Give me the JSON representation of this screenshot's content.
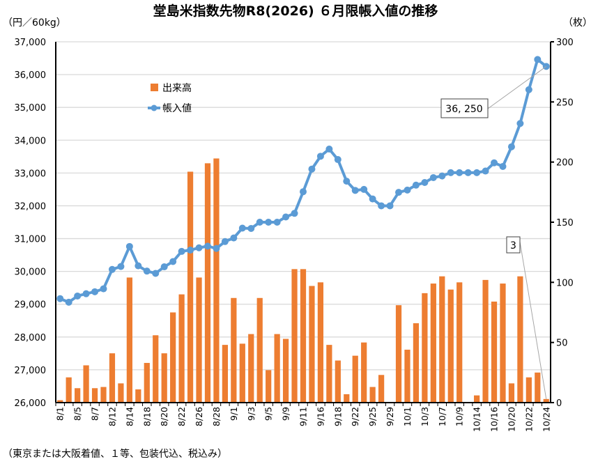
{
  "chart_data": {
    "type": "bar+line",
    "title": "堂島米指数先物R8(2026) ６月限帳入値の推移",
    "ylabel_left": "（円／60kg）",
    "ylabel_right": "（枚）",
    "footnote": "（東京または大阪着値、１等、包装代込、税込み）",
    "ylim_left": [
      26000,
      37000
    ],
    "yticks_left": [
      "26,000",
      "27,000",
      "28,000",
      "29,000",
      "30,000",
      "31,000",
      "32,000",
      "33,000",
      "34,000",
      "35,000",
      "36,000",
      "37,000"
    ],
    "ylim_right": [
      0,
      300
    ],
    "yticks_right": [
      "0",
      "50",
      "100",
      "150",
      "200",
      "250",
      "300"
    ],
    "grid": true,
    "legend": [
      "出来高",
      "帳入値"
    ],
    "legend_position": "top-left",
    "colors": {
      "volume": "#ed7d31",
      "price": "#5b9bd5"
    },
    "categories": [
      "8/1",
      "8/4",
      "8/5",
      "8/6",
      "8/7",
      "8/8",
      "8/12",
      "8/13",
      "8/14",
      "8/15",
      "8/18",
      "8/19",
      "8/20",
      "8/21",
      "8/22",
      "8/25",
      "8/26",
      "8/27",
      "8/28",
      "8/29",
      "9/1",
      "9/2",
      "9/3",
      "9/4",
      "9/5",
      "9/8",
      "9/9",
      "9/10",
      "9/11",
      "9/12",
      "9/16",
      "9/17",
      "9/18",
      "9/19",
      "9/22",
      "9/24",
      "9/25",
      "9/26",
      "9/29",
      "9/30",
      "10/1",
      "10/2",
      "10/3",
      "10/6",
      "10/7",
      "10/8",
      "10/9",
      "10/10",
      "10/14",
      "10/15",
      "10/16",
      "10/17",
      "10/20",
      "10/21",
      "10/22",
      "10/23",
      "10/24"
    ],
    "visible_xticks": [
      "8/1",
      "8/5",
      "8/7",
      "8/12",
      "8/14",
      "8/18",
      "8/20",
      "8/22",
      "8/26",
      "8/28",
      "9/1",
      "9/3",
      "9/5",
      "9/9",
      "9/11",
      "9/16",
      "9/18",
      "9/22",
      "9/25",
      "9/29",
      "10/1",
      "10/3",
      "10/7",
      "10/9",
      "10/14",
      "10/16",
      "10/20",
      "10/22",
      "10/24"
    ],
    "series": [
      {
        "name": "出来高",
        "axis": "right",
        "type": "bar",
        "values": [
          2,
          21,
          12,
          31,
          12,
          13,
          41,
          16,
          104,
          11,
          33,
          56,
          41,
          75,
          90,
          192,
          104,
          199,
          203,
          48,
          87,
          49,
          57,
          87,
          27,
          57,
          53,
          111,
          111,
          97,
          100,
          48,
          35,
          7,
          39,
          50,
          13,
          23,
          0,
          81,
          44,
          66,
          91,
          99,
          105,
          94,
          100,
          0,
          6,
          102,
          84,
          99,
          16,
          105,
          21,
          25,
          3
        ]
      },
      {
        "name": "帳入値",
        "axis": "left",
        "type": "line",
        "values": [
          29170,
          29060,
          29250,
          29320,
          29380,
          29470,
          30060,
          30150,
          30760,
          30170,
          30010,
          29940,
          30140,
          30300,
          30610,
          30650,
          30720,
          30770,
          30700,
          30910,
          31020,
          31320,
          31310,
          31500,
          31500,
          31500,
          31660,
          31770,
          32430,
          33120,
          33510,
          33730,
          33410,
          32750,
          32470,
          32500,
          32210,
          32000,
          32000,
          32410,
          32480,
          32630,
          32710,
          32860,
          32910,
          33010,
          33010,
          33010,
          33010,
          33060,
          33310,
          33200,
          33800,
          34510,
          35540,
          36460,
          36250
        ]
      }
    ],
    "annotations": {
      "last_price": "36, 250",
      "last_volume": "3"
    }
  }
}
